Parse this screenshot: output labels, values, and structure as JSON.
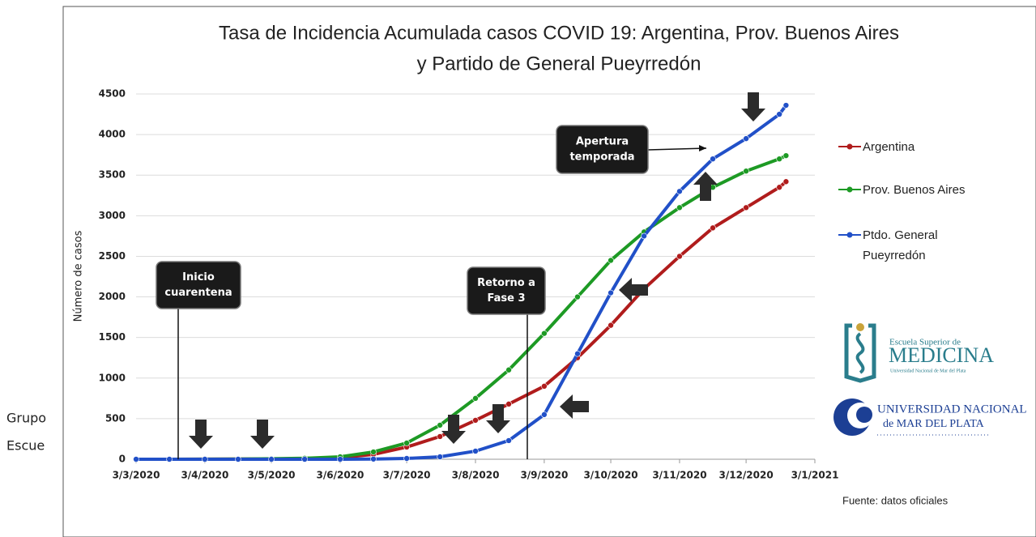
{
  "chart_data": {
    "type": "line",
    "title": [
      "Tasa de Incidencia Acumulada casos COVID 19: Argentina, Prov. Buenos Aires",
      "y Partido de General Pueyrredón"
    ],
    "y_label": "Número de casos",
    "x": [
      "3/3/2020",
      "18/3/2020",
      "3/4/2020",
      "18/4/2020",
      "3/5/2020",
      "18/5/2020",
      "3/6/2020",
      "18/6/2020",
      "3/7/2020",
      "18/7/2020",
      "3/8/2020",
      "18/8/2020",
      "3/9/2020",
      "18/9/2020",
      "3/10/2020",
      "18/10/2020",
      "3/11/2020",
      "18/11/2020",
      "3/12/2020",
      "18/12/2020",
      "21/12/2020"
    ],
    "series": [
      {
        "name": "Argentina",
        "color": "#b01c1c",
        "values": [
          0,
          0,
          1,
          2,
          4,
          8,
          20,
          60,
          150,
          280,
          480,
          680,
          900,
          1250,
          1650,
          2100,
          2500,
          2850,
          3100,
          3350,
          3420
        ]
      },
      {
        "name": "Prov. Buenos Aires",
        "color": "#1d9a24",
        "values": [
          0,
          0,
          1,
          3,
          6,
          12,
          30,
          90,
          200,
          420,
          750,
          1100,
          1550,
          2000,
          2450,
          2800,
          3100,
          3350,
          3550,
          3700,
          3740
        ]
      },
      {
        "name": "Ptdo. General Pueyrredón",
        "color": "#2150c8",
        "values": [
          0,
          0,
          0,
          0,
          0,
          0,
          0,
          2,
          10,
          30,
          100,
          230,
          550,
          1300,
          2050,
          2750,
          3300,
          3700,
          3950,
          4250,
          4360
        ]
      }
    ],
    "xlim": [
      "3/3/2020",
      "3/1/2021"
    ],
    "xticks": [
      "3/3/2020",
      "3/4/2020",
      "3/5/2020",
      "3/6/2020",
      "3/7/2020",
      "3/8/2020",
      "3/9/2020",
      "3/10/2020",
      "3/11/2020",
      "3/12/2020",
      "3/1/2021"
    ],
    "ylim": [
      0,
      4500
    ],
    "yticks": [
      0,
      500,
      1000,
      1500,
      2000,
      2500,
      3000,
      3500,
      4000,
      4500
    ],
    "grid": true,
    "legend": "right",
    "annotations": [
      {
        "lines": [
          "Inicio",
          "cuarentena"
        ]
      },
      {
        "lines": [
          "Retorno a",
          "Fase 3"
        ]
      },
      {
        "lines": [
          "Apertura",
          "temporada"
        ]
      }
    ]
  },
  "side_text": [
    "Grupo",
    "Escue"
  ],
  "logos": {
    "medicina": [
      "Escuela Superior de",
      "MEDICINA",
      "Universidad Nacional de Mar del Plata"
    ],
    "universidad": [
      "UNIVERSIDAD NACIONAL",
      "de MAR DEL PLATA"
    ]
  },
  "source": "Fuente: datos oficiales"
}
